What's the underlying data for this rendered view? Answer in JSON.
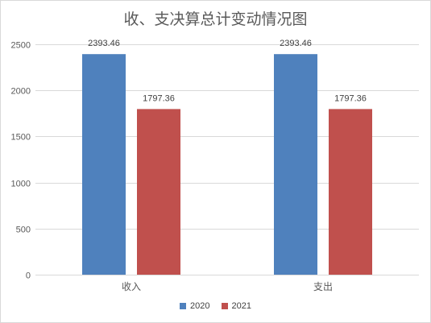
{
  "chart_data": {
    "type": "bar",
    "title": "收、支决算总计变动情况图",
    "categories": [
      "收入",
      "支出"
    ],
    "series": [
      {
        "name": "2020",
        "values": [
          2393.46,
          2393.46
        ],
        "color": "#4f81bd"
      },
      {
        "name": "2021",
        "values": [
          1797.36,
          1797.36
        ],
        "color": "#c0504d"
      }
    ],
    "data_labels": [
      [
        "2393.46",
        "2393.46"
      ],
      [
        "1797.36",
        "1797.36"
      ]
    ],
    "ylim": [
      0,
      2500
    ],
    "yticks": [
      0,
      500,
      1000,
      1500,
      2000,
      2500
    ],
    "grid": true,
    "legend_position": "bottom",
    "colors": {
      "gridline": "#d9d9d9",
      "axis_text": "#595959",
      "title_text": "#595959"
    }
  }
}
